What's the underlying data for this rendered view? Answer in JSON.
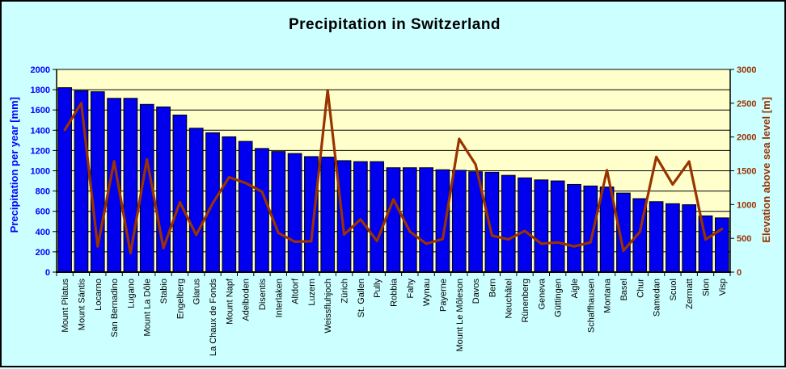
{
  "window": {
    "background": "#CCFFFF",
    "border_color": "#000000"
  },
  "title": {
    "text": "Precipitation in Switzerland"
  },
  "chart_data": {
    "type": "bar",
    "subtype": "bar+line combo, dual axis",
    "title": "Precipitation in Switzerland",
    "categories": [
      "Mount Pilatus",
      "Mount Säntis",
      "Locarno",
      "San Bernadino",
      "Lugano",
      "Mount La Dôle",
      "Stabio",
      "Engelberg",
      "Glarus",
      "La Chaux de Fonds",
      "Mount Napf",
      "Adelboden",
      "Disentis",
      "Interlaken",
      "Altdorf",
      "Luzern",
      "Weissfluhjoch",
      "Zürich",
      "St. Gallen",
      "Pully",
      "Robbia",
      "Fahy",
      "Wynau",
      "Payerne",
      "Mount Le Môleson",
      "Davos",
      "Bern",
      "Neuchâtel",
      "Rünenberg",
      "Geneva",
      "Güttingen",
      "Aigle",
      "Schaffhausen",
      "Montana",
      "Basel",
      "Chur",
      "Samedan",
      "Scuol",
      "Zermatt",
      "Sion",
      "Visp"
    ],
    "series": [
      {
        "name": "Precipitation per year [mm]",
        "type": "bar",
        "yaxis": "left",
        "color": "#0000EE",
        "border_color": "#000000",
        "values": [
          1820,
          1790,
          1780,
          1715,
          1715,
          1655,
          1630,
          1550,
          1420,
          1375,
          1335,
          1290,
          1220,
          1190,
          1170,
          1140,
          1135,
          1100,
          1090,
          1090,
          1030,
          1030,
          1030,
          1010,
          1005,
          990,
          985,
          955,
          930,
          910,
          900,
          865,
          850,
          840,
          780,
          725,
          695,
          675,
          665,
          555,
          535
        ]
      },
      {
        "name": "Elevation above sea level [m]",
        "type": "line",
        "yaxis": "right",
        "color": "#993300",
        "values": [
          2106,
          2502,
          380,
          1640,
          280,
          1670,
          355,
          1035,
          550,
          1018,
          1404,
          1320,
          1190,
          580,
          450,
          456,
          2693,
          556,
          780,
          460,
          1078,
          600,
          420,
          490,
          1972,
          1594,
          540,
          485,
          610,
          420,
          440,
          380,
          440,
          1508,
          316,
          595,
          1705,
          1298,
          1638,
          482,
          640
        ]
      }
    ],
    "left_axis": {
      "title": "Precipitation per year [mm]",
      "min": 0,
      "max": 2000,
      "step": 200,
      "color": "#0000FF",
      "ticks": [
        "0",
        "200",
        "400",
        "600",
        "800",
        "1000",
        "1200",
        "1400",
        "1600",
        "1800",
        "2000"
      ]
    },
    "right_axis": {
      "title": "Elevation above sea level [m]",
      "min": 0,
      "max": 3000,
      "step": 500,
      "color": "#993300",
      "ticks": [
        "0",
        "500",
        "1000",
        "1500",
        "2000",
        "2500",
        "3000"
      ]
    },
    "plot": {
      "background": "#FFFFCC",
      "outer_background": "#CCFFFF",
      "grid": true,
      "gridline_color": "#000000",
      "axis_line_color": "#000000",
      "legend": "none"
    }
  }
}
